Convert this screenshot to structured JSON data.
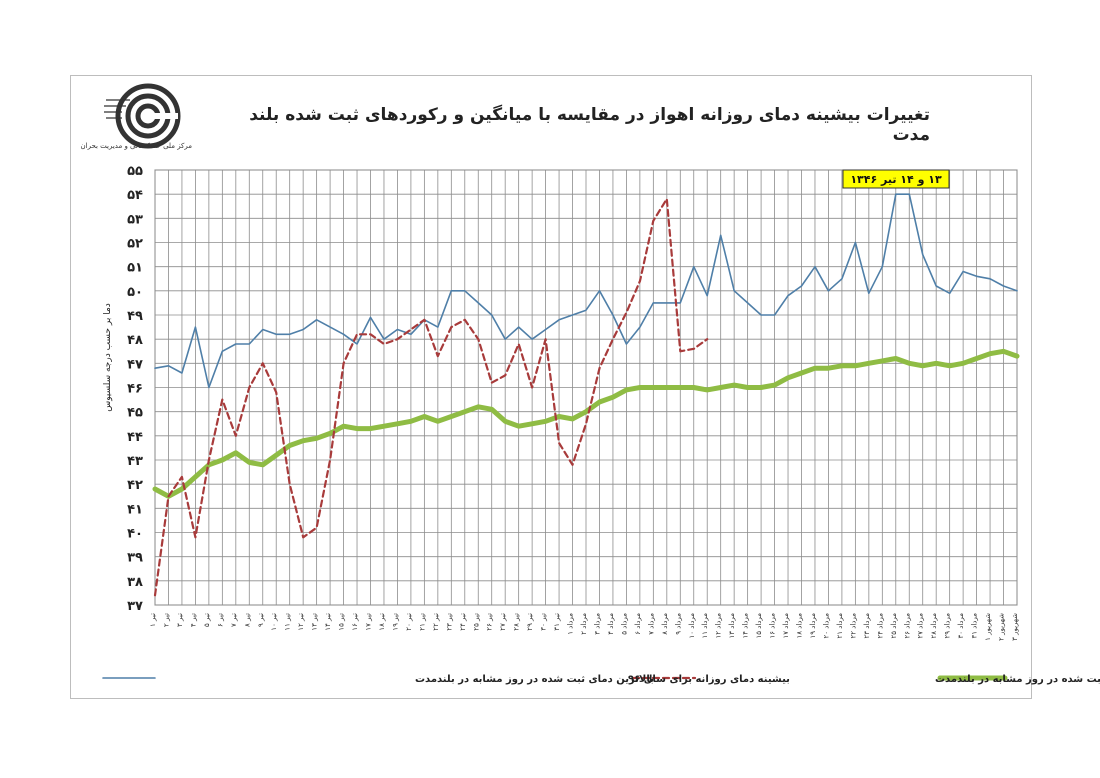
{
  "logo": {
    "icon": "spiral-logo-icon",
    "caption": "مرکز ملی خشکسالی و مدیریت بحران"
  },
  "chart_data": {
    "type": "line",
    "title": "تغییرات بیشینه دمای روزانه اهواز در مقایسه با میانگین و رکوردهای ثبت شده بلند مدت",
    "annotation": "۱۳ و ۱۴ تیر ۱۳۴۶",
    "ylabel": "دما بر حسب درجه سلسیوس",
    "ylim": [
      37,
      55
    ],
    "yticks": [
      37,
      38,
      39,
      40,
      41,
      42,
      43,
      44,
      45,
      46,
      47,
      48,
      49,
      50,
      51,
      52,
      53,
      54,
      55
    ],
    "ytick_labels": [
      "۳۷",
      "۳۸",
      "۳۹",
      "۴۰",
      "۴۱",
      "۴۲",
      "۴۳",
      "۴۴",
      "۴۵",
      "۴۶",
      "۴۷",
      "۴۸",
      "۴۹",
      "۵۰",
      "۵۱",
      "۵۲",
      "۵۳",
      "۵۴",
      "۵۵"
    ],
    "x_count": 65,
    "x_tick_labels": [
      "۱ تیر",
      "۲ تیر",
      "۳ تیر",
      "۴ تیر",
      "۵ تیر",
      "۶ تیر",
      "۷ تیر",
      "۸ تیر",
      "۹ تیر",
      "۱۰ تیر",
      "۱۱ تیر",
      "۱۲ تیر",
      "۱۳ تیر",
      "۱۴ تیر",
      "۱۵ تیر",
      "۱۶ تیر",
      "۱۷ تیر",
      "۱۸ تیر",
      "۱۹ تیر",
      "۲۰ تیر",
      "۲۱ تیر",
      "۲۲ تیر",
      "۲۳ تیر",
      "۲۴ تیر",
      "۲۵ تیر",
      "۲۶ تیر",
      "۲۷ تیر",
      "۲۸ تیر",
      "۲۹ تیر",
      "۳۰ تیر",
      "۳۱ تیر",
      "۱ مرداد",
      "۲ مرداد",
      "۳ مرداد",
      "۴ مرداد",
      "۵ مرداد",
      "۶ مرداد",
      "۷ مرداد",
      "۸ مرداد",
      "۹ مرداد",
      "۱۰ مرداد",
      "۱۱ مرداد",
      "۱۲ مرداد",
      "۱۳ مرداد",
      "۱۴ مرداد",
      "۱۵ مرداد",
      "۱۶ مرداد",
      "۱۷ مرداد",
      "۱۸ مرداد",
      "۱۹ مرداد",
      "۲۰ مرداد",
      "۲۱ مرداد",
      "۲۲ مرداد",
      "۲۳ مرداد",
      "۲۴ مرداد",
      "۲۵ مرداد",
      "۲۶ مرداد",
      "۲۷ مرداد",
      "۲۸ مرداد",
      "۲۹ مرداد",
      "۳۰ مرداد",
      "۳۱ مرداد",
      "۱ شهریور",
      "۲ شهریور",
      "۳ شهریور"
    ],
    "grid": true,
    "legend_position": "bottom",
    "series": [
      {
        "name": "بالاترین دمای ثبت شده در روز مشابه در بلندمدت",
        "color": "#4f7fa8",
        "style": "solid",
        "values": [
          46.8,
          46.9,
          46.6,
          48.5,
          46.0,
          47.5,
          47.8,
          47.8,
          48.4,
          48.2,
          48.2,
          48.4,
          48.8,
          48.5,
          48.2,
          47.8,
          48.9,
          48.0,
          48.4,
          48.2,
          48.8,
          48.5,
          50.0,
          50.0,
          49.5,
          49.0,
          48.0,
          48.5,
          48.0,
          48.4,
          48.8,
          49.0,
          49.2,
          50.0,
          49.0,
          47.8,
          48.5,
          49.5,
          49.5,
          49.5,
          51.0,
          49.8,
          52.3,
          50.0,
          49.5,
          49.0,
          49.0,
          49.8,
          50.2,
          51.0,
          50.0,
          50.5,
          52.0,
          49.9,
          51.0,
          54.0,
          54.0,
          51.5,
          50.2,
          49.9,
          50.8,
          50.6,
          50.5,
          50.2,
          50.0
        ]
      },
      {
        "name": "بیشینه دمای روزانه برای سال ۹۶",
        "color": "#a83b3b",
        "style": "dashed",
        "values": [
          37.4,
          41.5,
          42.3,
          39.8,
          43.0,
          45.5,
          44.0,
          46.0,
          47.0,
          45.8,
          42.0,
          39.8,
          40.2,
          43.0,
          47.0,
          48.2,
          48.2,
          47.8,
          48.0,
          48.4,
          48.8,
          47.3,
          48.5,
          48.8,
          48.0,
          46.2,
          46.5,
          47.8,
          46.0,
          48.0,
          43.7,
          42.8,
          44.5,
          46.8,
          48.0,
          49.1,
          50.4,
          52.9,
          53.8,
          47.5,
          47.6,
          48.0
        ]
      },
      {
        "name": "میانگین دمای ثبت شده در روز مشابه در بلندمدت",
        "color": "#8fbc44",
        "style": "thick",
        "values": [
          41.8,
          41.5,
          41.8,
          42.3,
          42.8,
          43.0,
          43.3,
          42.9,
          42.8,
          43.2,
          43.6,
          43.8,
          43.9,
          44.1,
          44.4,
          44.3,
          44.3,
          44.4,
          44.5,
          44.6,
          44.8,
          44.6,
          44.8,
          45.0,
          45.2,
          45.1,
          44.6,
          44.4,
          44.5,
          44.6,
          44.8,
          44.7,
          45.0,
          45.4,
          45.6,
          45.9,
          46.0,
          46.0,
          46.0,
          46.0,
          46.0,
          45.9,
          46.0,
          46.1,
          46.0,
          46.0,
          46.1,
          46.4,
          46.6,
          46.8,
          46.8,
          46.9,
          46.9,
          47.0,
          47.1,
          47.2,
          47.0,
          46.9,
          47.0,
          46.9,
          47.0,
          47.2,
          47.4,
          47.5,
          47.3
        ]
      }
    ]
  }
}
